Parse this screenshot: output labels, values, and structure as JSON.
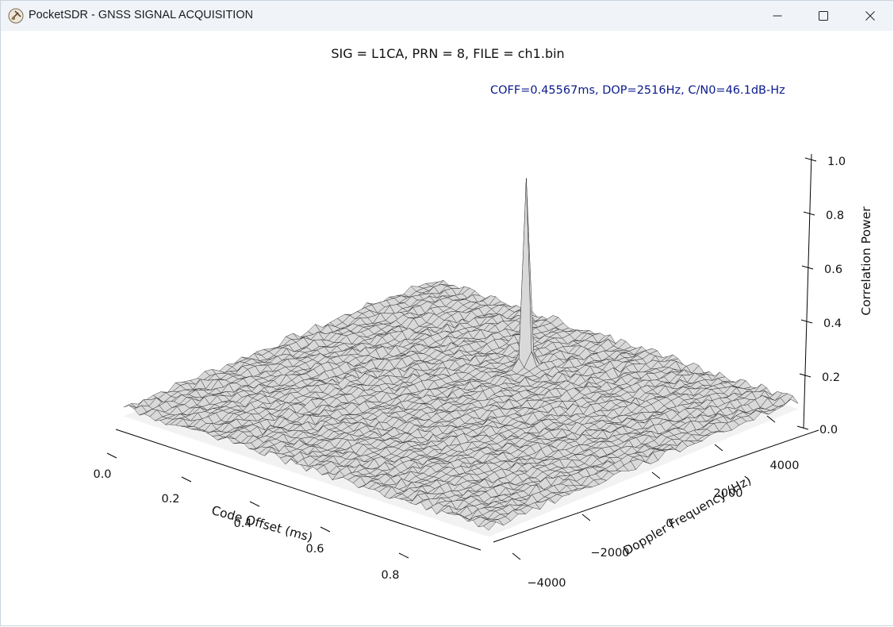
{
  "window": {
    "title": "PocketSDR - GNSS SIGNAL ACQUISITION",
    "icon": "satellite-app-icon",
    "controls": [
      "minimize-icon",
      "maximize-icon",
      "close-icon"
    ]
  },
  "plot": {
    "title": "SIG = L1CA, PRN = 8, FILE = ch1.bin",
    "annotation": "COFF=0.45567ms, DOP=2516Hz, C/N0=46.1dB-Hz",
    "annotation_color": "#0a1a8c"
  },
  "chart_data": {
    "type": "surface-wireframe",
    "title": "SIG = L1CA, PRN = 8, FILE = ch1.bin",
    "xlabel": "Code Offset (ms)",
    "ylabel": "Doppler Frequency (Hz)",
    "zlabel": "Correlation Power",
    "x_ticks": [
      "0.0",
      "0.2",
      "0.4",
      "0.6",
      "0.8"
    ],
    "y_ticks": [
      "−4000",
      "−2000",
      "0",
      "2000",
      "4000"
    ],
    "z_ticks": [
      "0.0",
      "0.2",
      "0.4",
      "0.6",
      "0.8",
      "1.0"
    ],
    "xlim": [
      0,
      1
    ],
    "ylim": [
      -5000,
      5000
    ],
    "zlim": [
      0,
      1
    ],
    "peak": {
      "code_offset_ms": 0.45567,
      "doppler_hz": 2516,
      "power": 0.72
    },
    "noise_floor": 0.03,
    "wire_color": "#2b2b2b",
    "surface_color": "#d9d9d9"
  }
}
